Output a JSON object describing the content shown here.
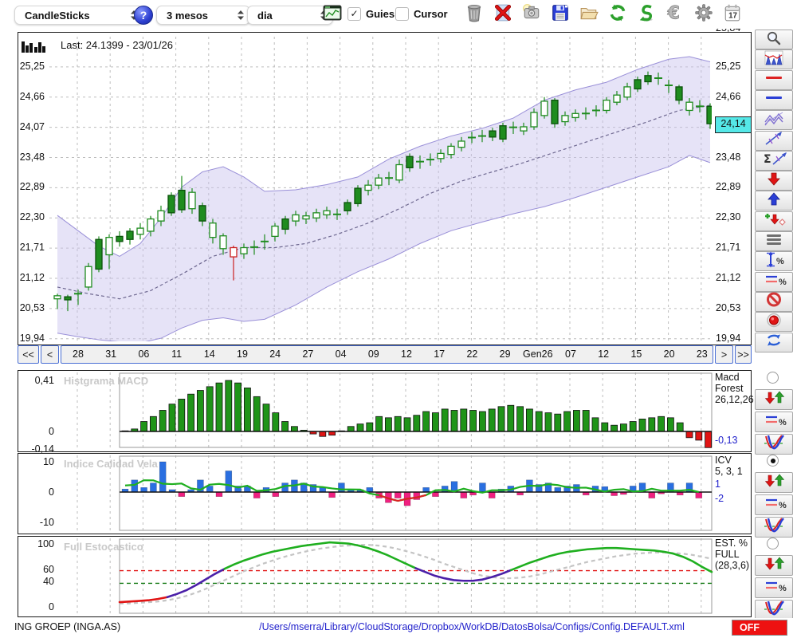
{
  "toolbar": {
    "chart_type_select": {
      "value": "CandleSticks"
    },
    "help_label": "?",
    "range_select": {
      "value": "3 mesos"
    },
    "timeframe_select": {
      "value": "dia"
    },
    "window_icon": "chart-window",
    "guies_label": "Guies",
    "guies_checked": true,
    "cursor_label": "Cursor",
    "cursor_checked": false,
    "icons": [
      "trash",
      "delete",
      "snapshot",
      "save",
      "open-folder",
      "refresh",
      "sync",
      "euro",
      "settings",
      "calendar"
    ],
    "calendar_day": "17"
  },
  "sidebar": {
    "top_radio_selected": false,
    "tools": [
      "zoom",
      "indicator-chart",
      "red-line",
      "blue-line",
      "channel",
      "trendline",
      "sum-trendline",
      "arrow-down",
      "arrow-up",
      "add-signal",
      "rows",
      "measure-percent",
      "lines-percent",
      "block",
      "record",
      "recycle"
    ],
    "panel_tools": [
      "arrows-pair",
      "lines-percent",
      "curve-fit"
    ]
  },
  "nav": {
    "first": "<<",
    "prev": "<",
    "next": ">",
    "last": ">>",
    "dates": [
      "28",
      "31",
      "06",
      "11",
      "14",
      "19",
      "24",
      "27",
      "04",
      "09",
      "12",
      "17",
      "22",
      "29",
      "Gen26",
      "07",
      "12",
      "15",
      "20",
      "23"
    ]
  },
  "statusbar": {
    "symbol": "ING GROEP (INGA.AS)",
    "config_path": "/Users/mserra/Library/CloudStorage/Dropbox/WorkDB/DatosBolsa/Configs/Config.DEFAULT.xml",
    "toggle": "OFF"
  },
  "colors": {
    "bull_green": "#1f8c1f",
    "bear_red": "#cc2020",
    "macd_green": "#1f9418",
    "macd_red": "#e01414",
    "icv_blue": "#2a6fe0",
    "icv_pink": "#f02080",
    "stoch_green": "#1faf1f",
    "stoch_purple": "#4a1fa8",
    "stoch_red": "#e11414",
    "band_lavender": "#c7c0ee",
    "tag_cyan": "#55e8e8",
    "value_blue": "#2222cc"
  },
  "chart_data": [
    {
      "id": "price",
      "type": "candlestick",
      "selected": false,
      "last_info": "Last: 24.1399 - 23/01/26",
      "last_price_label": "24,14",
      "last_price": 24.14,
      "axis_partial_top": "25,84",
      "y_max": 25.84,
      "y_min": 19.89,
      "ticks": [
        {
          "label": "25,25",
          "v": 25.25
        },
        {
          "label": "24,66",
          "v": 24.66
        },
        {
          "label": "24,07",
          "v": 24.07
        },
        {
          "label": "23,48",
          "v": 23.48
        },
        {
          "label": "22,89",
          "v": 22.89
        },
        {
          "label": "22,30",
          "v": 22.3
        },
        {
          "label": "21,71",
          "v": 21.71
        },
        {
          "label": "21,12",
          "v": 21.12
        },
        {
          "label": "20,53",
          "v": 20.53
        },
        {
          "label": "19,94",
          "v": 19.94
        }
      ],
      "candles": [
        [
          20.72,
          20.78,
          20.52,
          20.82,
          "h"
        ],
        [
          20.7,
          20.76,
          20.48,
          20.8,
          "s"
        ],
        [
          20.8,
          20.84,
          20.6,
          20.9,
          "d"
        ],
        [
          20.95,
          21.35,
          20.88,
          21.42,
          "h"
        ],
        [
          21.3,
          21.88,
          21.24,
          21.94,
          "s"
        ],
        [
          21.58,
          21.92,
          21.3,
          21.98,
          "h"
        ],
        [
          21.84,
          21.94,
          21.74,
          22.04,
          "s"
        ],
        [
          21.88,
          22.04,
          21.78,
          22.1,
          "s"
        ],
        [
          21.98,
          22.1,
          21.88,
          22.2,
          "h"
        ],
        [
          22.04,
          22.28,
          21.94,
          22.34,
          "h"
        ],
        [
          22.24,
          22.44,
          22.14,
          22.54,
          "h"
        ],
        [
          22.4,
          22.74,
          22.34,
          22.8,
          "s"
        ],
        [
          22.46,
          22.84,
          22.4,
          23.12,
          "s"
        ],
        [
          22.8,
          22.48,
          22.38,
          22.88,
          "h"
        ],
        [
          22.54,
          22.24,
          22.14,
          22.6,
          "s"
        ],
        [
          22.2,
          21.92,
          21.8,
          22.28,
          "h"
        ],
        [
          21.95,
          21.7,
          21.58,
          22.0,
          "h"
        ],
        [
          21.72,
          21.54,
          21.08,
          21.76,
          "r"
        ],
        [
          21.6,
          21.72,
          21.5,
          21.8,
          "h"
        ],
        [
          21.7,
          21.76,
          21.58,
          21.86,
          "d"
        ],
        [
          21.8,
          21.88,
          21.68,
          21.98,
          "d"
        ],
        [
          21.94,
          22.14,
          21.84,
          22.2,
          "h"
        ],
        [
          22.08,
          22.28,
          21.98,
          22.34,
          "s"
        ],
        [
          22.24,
          22.36,
          22.14,
          22.44,
          "h"
        ],
        [
          22.28,
          22.34,
          22.18,
          22.42,
          "h"
        ],
        [
          22.3,
          22.4,
          22.22,
          22.48,
          "h"
        ],
        [
          22.36,
          22.44,
          22.28,
          22.52,
          "h"
        ],
        [
          22.34,
          22.4,
          22.26,
          22.48,
          "d"
        ],
        [
          22.44,
          22.6,
          22.36,
          22.66,
          "s"
        ],
        [
          22.58,
          22.88,
          22.52,
          22.94,
          "s"
        ],
        [
          22.84,
          22.94,
          22.74,
          23.04,
          "h"
        ],
        [
          22.94,
          23.08,
          22.86,
          23.16,
          "h"
        ],
        [
          23.04,
          23.12,
          22.94,
          23.2,
          "d"
        ],
        [
          23.04,
          23.34,
          22.98,
          23.44,
          "h"
        ],
        [
          23.28,
          23.5,
          23.2,
          23.56,
          "s"
        ],
        [
          23.36,
          23.44,
          23.26,
          23.52,
          "d"
        ],
        [
          23.4,
          23.48,
          23.32,
          23.56,
          "d"
        ],
        [
          23.46,
          23.56,
          23.38,
          23.64,
          "h"
        ],
        [
          23.54,
          23.7,
          23.46,
          23.76,
          "h"
        ],
        [
          23.68,
          23.8,
          23.6,
          23.88,
          "h"
        ],
        [
          23.84,
          23.9,
          23.76,
          23.98,
          "d"
        ],
        [
          23.86,
          23.94,
          23.78,
          24.02,
          "d"
        ],
        [
          23.88,
          24.0,
          23.8,
          24.06,
          "s"
        ],
        [
          23.84,
          24.1,
          23.78,
          24.16,
          "s"
        ],
        [
          24.04,
          24.1,
          23.94,
          24.18,
          "d"
        ],
        [
          24.0,
          24.08,
          23.92,
          24.16,
          "h"
        ],
        [
          24.08,
          24.36,
          24.02,
          24.44,
          "h"
        ],
        [
          24.3,
          24.58,
          24.24,
          24.66,
          "h"
        ],
        [
          24.6,
          24.14,
          24.06,
          24.64,
          "s"
        ],
        [
          24.18,
          24.3,
          24.1,
          24.38,
          "h"
        ],
        [
          24.26,
          24.34,
          24.18,
          24.42,
          "h"
        ],
        [
          24.3,
          24.38,
          24.22,
          24.46,
          "d"
        ],
        [
          24.36,
          24.44,
          24.28,
          24.5,
          "d"
        ],
        [
          24.4,
          24.6,
          24.34,
          24.66,
          "h"
        ],
        [
          24.56,
          24.7,
          24.5,
          24.78,
          "h"
        ],
        [
          24.66,
          24.86,
          24.6,
          24.94,
          "h"
        ],
        [
          24.82,
          25.0,
          24.76,
          25.06,
          "s"
        ],
        [
          24.96,
          25.08,
          24.9,
          25.16,
          "s"
        ],
        [
          25.0,
          25.06,
          24.9,
          25.14,
          "d"
        ],
        [
          24.94,
          24.84,
          24.74,
          25.0,
          "d"
        ],
        [
          24.86,
          24.6,
          24.52,
          24.9,
          "s"
        ],
        [
          24.56,
          24.4,
          24.3,
          24.64,
          "h"
        ],
        [
          24.44,
          24.52,
          24.36,
          24.6,
          "d"
        ],
        [
          24.48,
          24.14,
          24.04,
          24.54,
          "s"
        ]
      ],
      "band_upper": [
        [
          0,
          22.35
        ],
        [
          2,
          22.05
        ],
        [
          4,
          21.75
        ],
        [
          6,
          21.55
        ],
        [
          8,
          21.8
        ],
        [
          10,
          22.3
        ],
        [
          12,
          22.9
        ],
        [
          14,
          23.2
        ],
        [
          16,
          23.3
        ],
        [
          18,
          23.1
        ],
        [
          20,
          22.82
        ],
        [
          23,
          22.85
        ],
        [
          26,
          22.95
        ],
        [
          29,
          23.1
        ],
        [
          32,
          23.45
        ],
        [
          35,
          23.7
        ],
        [
          38,
          23.9
        ],
        [
          41,
          24.05
        ],
        [
          44,
          24.25
        ],
        [
          47,
          24.6
        ],
        [
          50,
          24.8
        ],
        [
          53,
          24.95
        ],
        [
          56,
          25.2
        ],
        [
          59,
          25.4
        ],
        [
          61,
          25.45
        ],
        [
          63,
          25.35
        ]
      ],
      "band_lower": [
        [
          0,
          20.05
        ],
        [
          2,
          19.98
        ],
        [
          4,
          19.92
        ],
        [
          6,
          19.88
        ],
        [
          8,
          19.86
        ],
        [
          10,
          19.95
        ],
        [
          12,
          20.15
        ],
        [
          14,
          20.3
        ],
        [
          16,
          20.35
        ],
        [
          18,
          20.28
        ],
        [
          20,
          20.32
        ],
        [
          23,
          20.6
        ],
        [
          26,
          20.95
        ],
        [
          29,
          21.25
        ],
        [
          32,
          21.5
        ],
        [
          35,
          21.8
        ],
        [
          38,
          22.05
        ],
        [
          41,
          22.22
        ],
        [
          44,
          22.38
        ],
        [
          47,
          22.52
        ],
        [
          50,
          22.7
        ],
        [
          53,
          22.9
        ],
        [
          56,
          23.1
        ],
        [
          59,
          23.3
        ],
        [
          61,
          23.52
        ],
        [
          63,
          23.38
        ]
      ],
      "midline": [
        [
          0,
          20.95
        ],
        [
          3,
          20.82
        ],
        [
          6,
          20.72
        ],
        [
          9,
          20.88
        ],
        [
          12,
          21.2
        ],
        [
          15,
          21.55
        ],
        [
          18,
          21.72
        ],
        [
          21,
          21.72
        ],
        [
          24,
          21.8
        ],
        [
          27,
          21.98
        ],
        [
          30,
          22.2
        ],
        [
          33,
          22.48
        ],
        [
          36,
          22.78
        ],
        [
          39,
          23.02
        ],
        [
          42,
          23.2
        ],
        [
          45,
          23.38
        ],
        [
          48,
          23.58
        ],
        [
          51,
          23.78
        ],
        [
          54,
          23.98
        ],
        [
          57,
          24.18
        ],
        [
          60,
          24.4
        ],
        [
          63,
          24.5
        ]
      ]
    },
    {
      "id": "macd",
      "type": "bar",
      "selected": false,
      "title": "Histgrama MACD",
      "ticks": [
        {
          "label": "0,41",
          "v": 0.41
        },
        {
          "label": "0",
          "v": 0
        },
        {
          "label": "-0,14",
          "v": -0.14
        }
      ],
      "values": [
        0.005,
        0.02,
        0.08,
        0.12,
        0.17,
        0.22,
        0.26,
        0.3,
        0.33,
        0.36,
        0.39,
        0.41,
        0.39,
        0.35,
        0.28,
        0.22,
        0.15,
        0.08,
        0.04,
        0.01,
        -0.02,
        -0.04,
        -0.03,
        0.005,
        0.04,
        0.06,
        0.07,
        0.12,
        0.11,
        0.12,
        0.11,
        0.13,
        0.16,
        0.15,
        0.18,
        0.17,
        0.18,
        0.17,
        0.16,
        0.18,
        0.2,
        0.21,
        0.2,
        0.18,
        0.16,
        0.15,
        0.14,
        0.16,
        0.17,
        0.17,
        0.11,
        0.07,
        0.05,
        0.06,
        0.08,
        0.1,
        0.11,
        0.12,
        0.11,
        0.07,
        -0.05,
        -0.07,
        -0.13
      ],
      "info": [
        "Macd",
        "Forest",
        "26,12,26"
      ],
      "last_value_label": "-0,13"
    },
    {
      "id": "icv",
      "type": "bar-line",
      "selected": true,
      "title": "Indice Calidad Vela",
      "ticks": [
        {
          "label": "10",
          "v": 10
        },
        {
          "label": "0",
          "v": 0
        },
        {
          "label": "-10",
          "v": -10
        }
      ],
      "values": [
        1,
        4,
        1.5,
        3,
        10,
        0.8,
        -1.5,
        0.8,
        4,
        2,
        -1.5,
        7,
        2,
        2,
        -2,
        1.5,
        -1.5,
        3,
        4,
        3,
        2.5,
        1.5,
        -1.8,
        3,
        0.8,
        0.8,
        1.5,
        -2,
        -3.5,
        -2,
        -4.5,
        -2.5,
        1.5,
        -1.5,
        2,
        3.5,
        -2,
        -1,
        3,
        -2,
        1,
        2,
        -1,
        4,
        2.5,
        3,
        1.5,
        2,
        2.5,
        -1,
        2,
        1.8,
        -1.2,
        -0.8,
        2,
        3,
        -2,
        -0.6,
        3,
        -1,
        3,
        -2
      ],
      "red_segment": [
        27,
        32
      ],
      "info": [
        "ICV",
        "5, 3, 1"
      ],
      "value_labels": [
        "1",
        "-2"
      ]
    },
    {
      "id": "stoch",
      "type": "line",
      "selected": false,
      "title": "Full Estocastico",
      "ticks": [
        {
          "label": "100",
          "v": 100
        },
        {
          "label": "60",
          "v": 60
        },
        {
          "label": "40",
          "v": 40
        },
        {
          "label": "0",
          "v": 0
        }
      ],
      "hlines": [
        {
          "v": 60,
          "color": "#e11414"
        },
        {
          "v": 40,
          "color": "#157a15"
        }
      ],
      "k": [
        10,
        11,
        12,
        13,
        15,
        18,
        23,
        29,
        37,
        46,
        55,
        63,
        70,
        76,
        81,
        86,
        90,
        93,
        96,
        99,
        101,
        103,
        105,
        104,
        103,
        100,
        96,
        91,
        85,
        78,
        71,
        64,
        58,
        52,
        48,
        45,
        44,
        44,
        46,
        50,
        55,
        61,
        67,
        73,
        78,
        83,
        87,
        90,
        92,
        94,
        95,
        96,
        96,
        95,
        94,
        93,
        92,
        90,
        87,
        82,
        75,
        66,
        58
      ],
      "d": [
        8,
        8,
        9,
        10,
        11,
        13,
        16,
        20,
        25,
        31,
        38,
        45,
        52,
        59,
        65,
        71,
        76,
        81,
        85,
        89,
        92,
        95,
        97,
        99,
        100,
        101,
        101,
        100,
        98,
        95,
        91,
        87,
        82,
        77,
        71,
        66,
        61,
        56,
        52,
        50,
        48,
        48,
        49,
        51,
        54,
        58,
        62,
        66,
        70,
        74,
        77,
        80,
        83,
        85,
        87,
        88,
        89,
        89,
        88,
        87,
        85,
        82,
        79
      ],
      "segments": [
        [
          0,
          5,
          "red"
        ],
        [
          5,
          11,
          "purple"
        ],
        [
          11,
          31,
          "green"
        ],
        [
          31,
          41,
          "purple"
        ],
        [
          41,
          62,
          "green"
        ]
      ],
      "info": [
        "EST. %",
        "FULL",
        "(28,3,6)"
      ]
    }
  ]
}
